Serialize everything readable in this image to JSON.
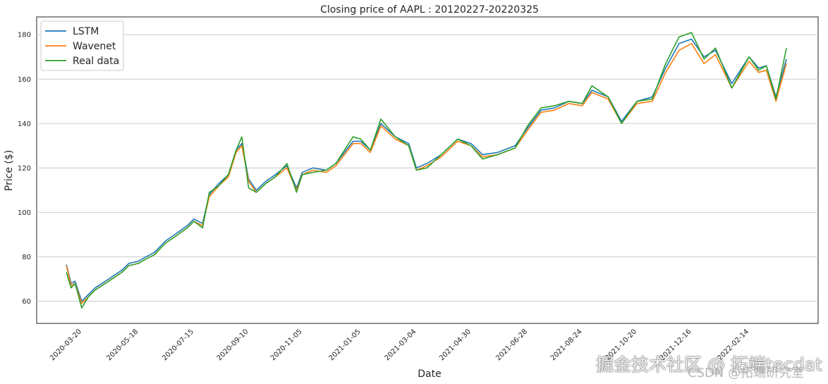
{
  "chart_data": {
    "type": "line",
    "title": "Closing price of AAPL : 20120227-20220325",
    "xlabel": "Date",
    "ylabel": "Price ($)",
    "ylim": [
      50,
      188
    ],
    "yticks": [
      60,
      80,
      100,
      120,
      140,
      160,
      180
    ],
    "xticks": [
      "2020-03-20",
      "2020-05-18",
      "2020-07-15",
      "2020-09-10",
      "2020-11-05",
      "2021-01-05",
      "2021-03-04",
      "2021-04-30",
      "2021-06-28",
      "2021-08-24",
      "2021-10-20",
      "2021-12-16",
      "2022-02-14"
    ],
    "xlim": [
      "2020-02-02",
      "2022-04-27"
    ],
    "grid": "y-only",
    "legend_position": "top-left",
    "x": [
      "2020-03-04",
      "2020-03-09",
      "2020-03-13",
      "2020-03-20",
      "2020-03-27",
      "2020-04-03",
      "2020-04-10",
      "2020-04-17",
      "2020-04-24",
      "2020-05-01",
      "2020-05-08",
      "2020-05-18",
      "2020-05-26",
      "2020-06-04",
      "2020-06-15",
      "2020-06-25",
      "2020-07-08",
      "2020-07-15",
      "2020-07-24",
      "2020-07-31",
      "2020-08-10",
      "2020-08-20",
      "2020-08-28",
      "2020-09-03",
      "2020-09-10",
      "2020-09-18",
      "2020-09-28",
      "2020-10-08",
      "2020-10-20",
      "2020-10-30",
      "2020-11-05",
      "2020-11-16",
      "2020-11-30",
      "2020-12-10",
      "2020-12-28",
      "2021-01-05",
      "2021-01-15",
      "2021-01-26",
      "2021-02-10",
      "2021-02-24",
      "2021-03-04",
      "2021-03-15",
      "2021-03-30",
      "2021-04-16",
      "2021-04-30",
      "2021-05-12",
      "2021-05-28",
      "2021-06-15",
      "2021-06-28",
      "2021-07-12",
      "2021-07-26",
      "2021-08-10",
      "2021-08-24",
      "2021-09-03",
      "2021-09-20",
      "2021-10-04",
      "2021-10-20",
      "2021-11-05",
      "2021-11-19",
      "2021-12-03",
      "2021-12-16",
      "2021-12-29",
      "2022-01-10",
      "2022-01-27",
      "2022-02-14",
      "2022-02-24",
      "2022-03-04",
      "2022-03-14",
      "2022-03-25"
    ],
    "series": [
      {
        "name": "LSTM",
        "color": "#1f77b4",
        "values": [
          76.5,
          68,
          69,
          60,
          63,
          66,
          68,
          70,
          72,
          74,
          77,
          78,
          80,
          82,
          87,
          90,
          94,
          97,
          95,
          108,
          113,
          117,
          128,
          131,
          115,
          110,
          114,
          117,
          121,
          111,
          118,
          120,
          119,
          122,
          132,
          132,
          128,
          140,
          134,
          131,
          120,
          122,
          126,
          133,
          131,
          126,
          127,
          130,
          138,
          146,
          147,
          150,
          149,
          155,
          152,
          141,
          150,
          152,
          165,
          176,
          178,
          170,
          173,
          158,
          170,
          165,
          166,
          152,
          169
        ]
      },
      {
        "name": "Wavenet",
        "color": "#ff7f0e",
        "values": [
          76,
          67,
          68,
          59,
          62,
          65,
          67,
          69,
          71,
          73,
          76,
          77,
          79,
          81,
          86,
          89,
          93,
          96,
          94,
          107,
          112,
          116,
          127,
          130,
          114,
          109,
          113,
          116,
          120,
          110,
          117,
          119,
          118,
          121,
          131,
          131,
          127,
          139,
          133,
          130,
          119,
          121,
          125,
          132,
          130,
          125,
          126,
          129,
          137,
          145,
          146,
          149,
          148,
          154,
          151,
          140,
          149,
          150,
          163,
          173,
          176,
          167,
          171,
          156,
          168,
          163,
          164,
          150,
          167
        ]
      },
      {
        "name": "Real data",
        "color": "#2ca02c",
        "values": [
          73,
          66,
          68,
          57,
          62,
          65,
          67,
          69,
          71,
          73,
          76,
          77,
          79,
          81,
          86,
          89,
          93,
          96,
          93,
          109,
          112,
          117,
          128,
          134,
          111,
          109,
          113,
          116,
          122,
          109,
          117,
          118,
          119,
          122,
          134,
          133,
          128,
          142,
          134,
          130,
          119,
          120,
          126,
          133,
          130,
          124,
          126,
          129,
          139,
          147,
          148,
          150,
          149,
          157,
          152,
          140,
          150,
          151,
          167,
          179,
          181,
          169,
          174,
          156,
          170,
          164,
          166,
          151,
          174
        ]
      }
    ]
  },
  "watermark": {
    "primary": "掘金技术社区 @ 拓端tecdat",
    "secondary": "CSDN @拓端研究室"
  }
}
